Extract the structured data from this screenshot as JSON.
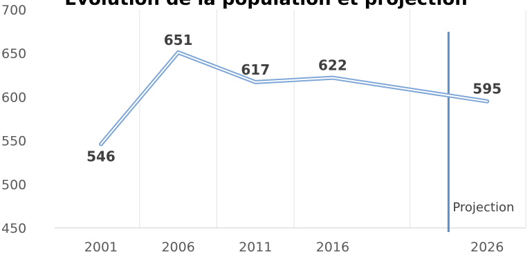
{
  "chart_data": {
    "type": "line",
    "title": "Évolution de la population et projection",
    "xlabel": "",
    "ylabel": "",
    "x": [
      2001,
      2006,
      2011,
      2016,
      2026
    ],
    "x_tick_labels": [
      "2001",
      "2006",
      "2011",
      "2016",
      "2026"
    ],
    "series": [
      {
        "name": "",
        "values": [
          546,
          651,
          617,
          622,
          595
        ],
        "color": "#7ea6d6"
      }
    ],
    "data_labels": [
      "546",
      "651",
      "617",
      "622",
      "595"
    ],
    "ylim": [
      450,
      700
    ],
    "y_ticks": [
      450,
      500,
      550,
      600,
      650,
      700
    ],
    "y_tick_labels": [
      "450",
      "500",
      "550",
      "600",
      "650",
      "700"
    ],
    "xlim": [
      1998,
      2028.5
    ],
    "annotation": {
      "text": "Projection",
      "x": 2023.5,
      "color": "#5b8fc7"
    },
    "grid": {
      "vertical": true,
      "horizontal": false,
      "color": "#e3e3e3"
    },
    "legend": "none"
  }
}
